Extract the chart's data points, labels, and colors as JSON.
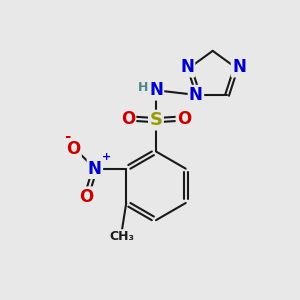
{
  "background_color": "#e8e8e8",
  "bond_color": "#1a1a1a",
  "bond_width": 1.5,
  "colors": {
    "N": "#0000cc",
    "O": "#cc0000",
    "S": "#999900",
    "C": "#1a1a1a",
    "H": "#4a8888"
  }
}
